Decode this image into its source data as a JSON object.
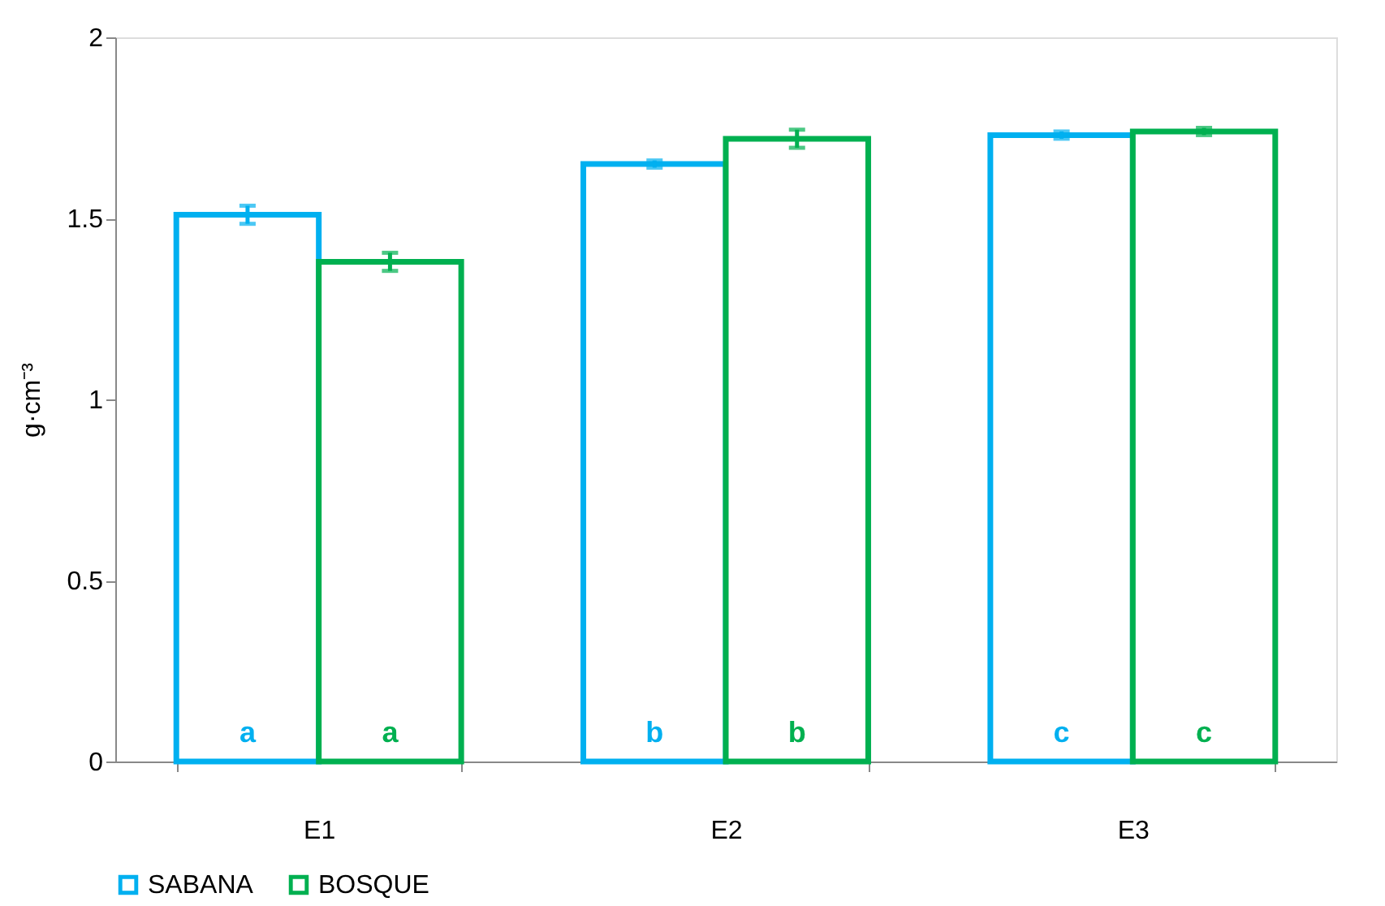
{
  "chart_data": {
    "type": "bar",
    "ylabel": "g·cm⁻³",
    "categories": [
      "E1",
      "E2",
      "E3"
    ],
    "series": [
      {
        "name": "SABANA",
        "color": "#00b0f0",
        "values": [
          1.51,
          1.65,
          1.73
        ],
        "errors": [
          0.025,
          0.01,
          0.01
        ],
        "value_labels": [
          "a",
          "b",
          "c"
        ]
      },
      {
        "name": "BOSQUE",
        "color": "#00b050",
        "values": [
          1.38,
          1.72,
          1.74
        ],
        "errors": [
          0.025,
          0.025,
          0.01
        ],
        "value_labels": [
          "a",
          "b",
          "c"
        ]
      }
    ],
    "ylim": [
      0,
      2
    ],
    "yticks": [
      0,
      0.5,
      1,
      1.5,
      2
    ],
    "grid": false,
    "legend": "bottom"
  }
}
